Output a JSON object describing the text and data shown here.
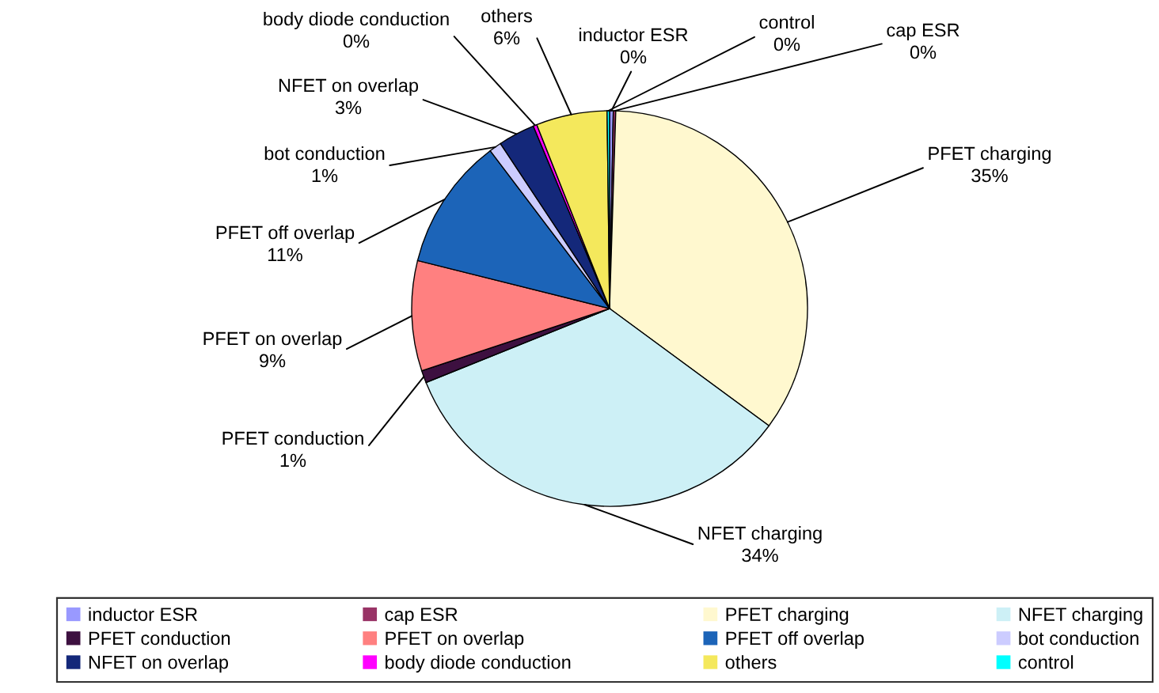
{
  "chart_data": {
    "type": "pie",
    "categories": [
      "inductor ESR",
      "cap ESR",
      "PFET charging",
      "NFET charging",
      "PFET conduction",
      "PFET on overlap",
      "PFET off overlap",
      "bot conduction",
      "NFET on overlap",
      "body diode conduction",
      "others",
      "control"
    ],
    "values": [
      0.3,
      0.2,
      34.6,
      33.8,
      1,
      9,
      10.8,
      1,
      3,
      0.3,
      5.8,
      0.2
    ],
    "value_labels": [
      "0%",
      "0%",
      "35%",
      "34%",
      "1%",
      "9%",
      "11%",
      "1%",
      "3%",
      "0%",
      "6%",
      "0%"
    ],
    "colors": [
      "#9999ff",
      "#993366",
      "#fff8cf",
      "#cdf0f6",
      "#3d1040",
      "#ff8080",
      "#1c64b8",
      "#ccccff",
      "#14287a",
      "#ff00ff",
      "#f4e85c",
      "#00ffff"
    ],
    "legend": "bottom"
  }
}
